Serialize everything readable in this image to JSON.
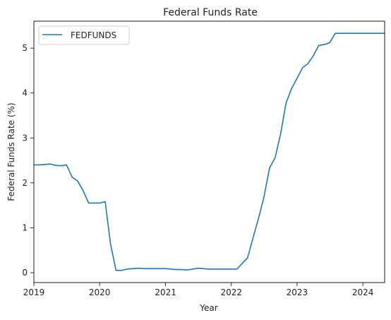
{
  "chart_data": {
    "type": "line",
    "title": "Federal Funds Rate",
    "xlabel": "Year",
    "ylabel": "Federal Funds Rate (%)",
    "x_tick_labels": [
      "2019",
      "2020",
      "2021",
      "2022",
      "2023",
      "2024"
    ],
    "y_tick_labels": [
      "0",
      "1",
      "2",
      "3",
      "4",
      "5"
    ],
    "xlim": [
      "2019-01-01",
      "2024-05-01"
    ],
    "ylim": [
      -0.22,
      5.6
    ],
    "grid": false,
    "legend_position": "top-left",
    "x": [
      "2019-01-01",
      "2019-02-01",
      "2019-03-01",
      "2019-04-01",
      "2019-05-01",
      "2019-06-01",
      "2019-07-01",
      "2019-08-01",
      "2019-09-01",
      "2019-10-01",
      "2019-11-01",
      "2019-12-01",
      "2020-01-01",
      "2020-02-01",
      "2020-03-01",
      "2020-04-01",
      "2020-05-01",
      "2020-06-01",
      "2020-07-01",
      "2020-08-01",
      "2020-09-01",
      "2020-10-01",
      "2020-11-01",
      "2020-12-01",
      "2021-01-01",
      "2021-02-01",
      "2021-03-01",
      "2021-04-01",
      "2021-05-01",
      "2021-06-01",
      "2021-07-01",
      "2021-08-01",
      "2021-09-01",
      "2021-10-01",
      "2021-11-01",
      "2021-12-01",
      "2022-01-01",
      "2022-02-01",
      "2022-03-01",
      "2022-04-01",
      "2022-05-01",
      "2022-06-01",
      "2022-07-01",
      "2022-08-01",
      "2022-09-01",
      "2022-10-01",
      "2022-11-01",
      "2022-12-01",
      "2023-01-01",
      "2023-02-01",
      "2023-03-01",
      "2023-04-01",
      "2023-05-01",
      "2023-06-01",
      "2023-07-01",
      "2023-08-01",
      "2023-09-01",
      "2023-10-01",
      "2023-11-01",
      "2023-12-01",
      "2024-01-01",
      "2024-02-01",
      "2024-03-01",
      "2024-04-01",
      "2024-05-01"
    ],
    "series": [
      {
        "name": "FEDFUNDS",
        "color": "#1f77b4",
        "values": [
          2.4,
          2.4,
          2.41,
          2.42,
          2.39,
          2.38,
          2.4,
          2.13,
          2.04,
          1.83,
          1.55,
          1.55,
          1.55,
          1.58,
          0.65,
          0.05,
          0.05,
          0.08,
          0.09,
          0.1,
          0.09,
          0.09,
          0.09,
          0.09,
          0.09,
          0.08,
          0.07,
          0.07,
          0.06,
          0.08,
          0.1,
          0.09,
          0.08,
          0.08,
          0.08,
          0.08,
          0.08,
          0.08,
          0.2,
          0.33,
          0.77,
          1.21,
          1.68,
          2.33,
          2.56,
          3.08,
          3.78,
          4.1,
          4.33,
          4.57,
          4.65,
          4.83,
          5.06,
          5.08,
          5.12,
          5.33,
          5.33,
          5.33,
          5.33,
          5.33,
          5.33,
          5.33,
          5.33,
          5.33,
          5.33
        ]
      }
    ]
  }
}
